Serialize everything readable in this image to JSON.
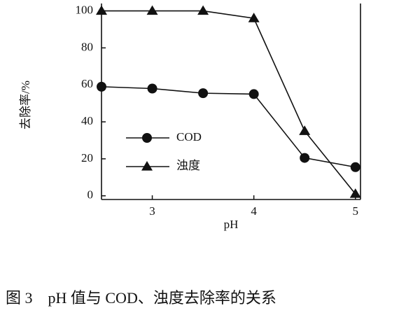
{
  "chart_data": {
    "type": "line",
    "caption": "图 3　pH 值与 COD、浊度去除率的关系",
    "x_label": "pH",
    "y_label": "去除率/%",
    "x": [
      2.5,
      3,
      3.5,
      4,
      4.5,
      5
    ],
    "series": [
      {
        "name": "COD",
        "color": "#111111",
        "marker": "circle",
        "values": [
          59,
          58,
          55.5,
          55,
          20.5,
          15.5
        ]
      },
      {
        "name": "浊度",
        "color": "#111111",
        "marker": "triangle",
        "values": [
          100,
          100,
          100,
          96,
          35,
          1
        ]
      }
    ],
    "xlim": [
      2.5,
      5.05
    ],
    "xticks": [
      3,
      4,
      5
    ],
    "ylim": [
      -2,
      104
    ],
    "yticks": [
      0,
      20,
      40,
      60,
      80,
      100
    ],
    "grid": false
  }
}
